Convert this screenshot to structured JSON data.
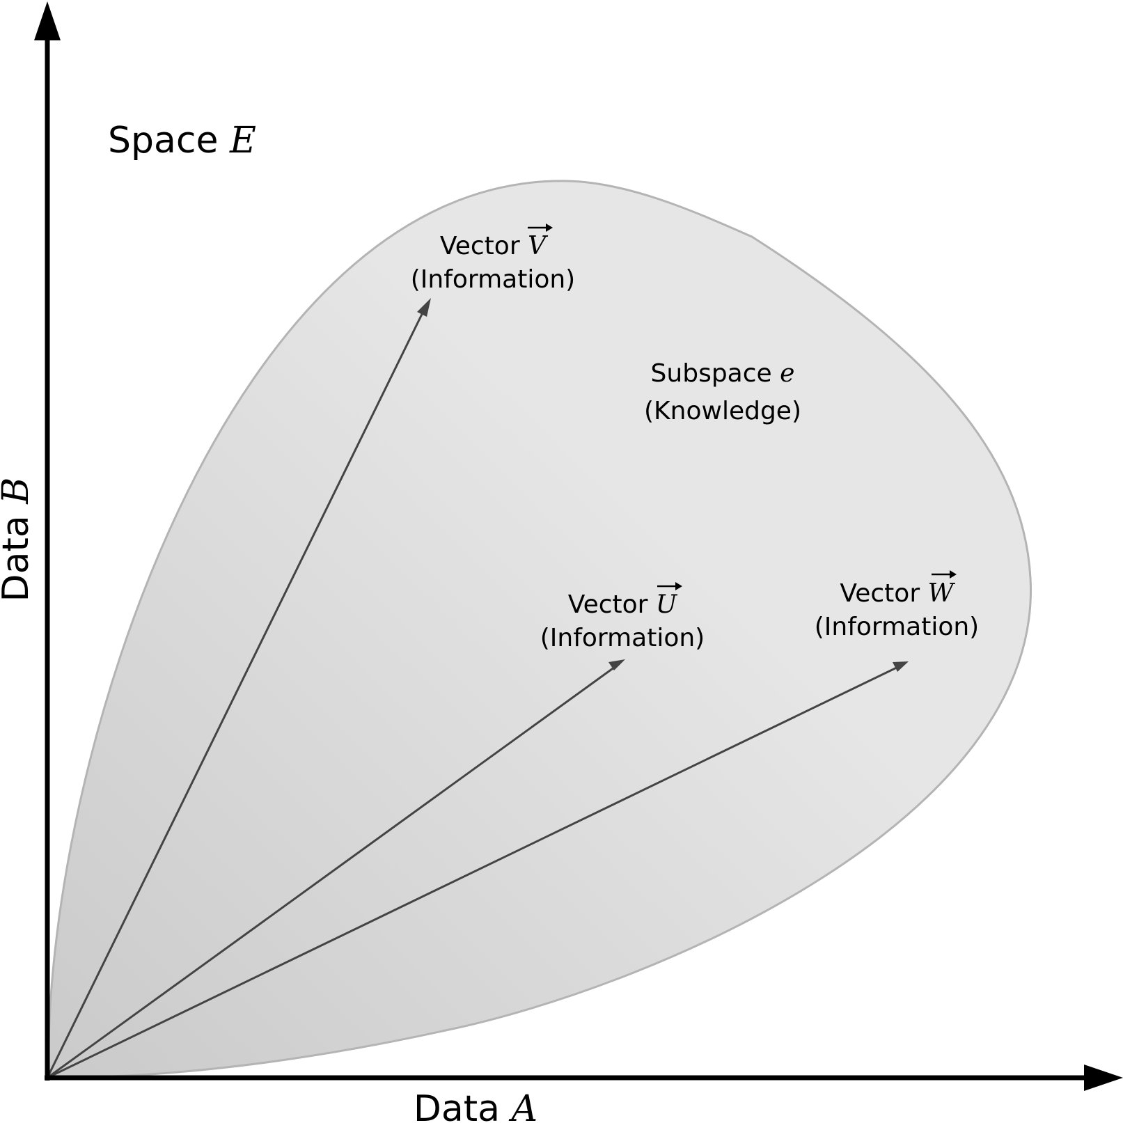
{
  "diagram": {
    "space": {
      "prefix": "Space",
      "symbol": "E"
    },
    "x_axis": {
      "prefix": "Data",
      "symbol": "A"
    },
    "y_axis": {
      "prefix": "Data",
      "symbol": "B"
    },
    "subspace": {
      "prefix": "Subspace",
      "symbol": "e",
      "caption": "(Knowledge)"
    },
    "vectors": [
      {
        "id": "v",
        "prefix": "Vector",
        "symbol": "V",
        "caption": "(Information)"
      },
      {
        "id": "u",
        "prefix": "Vector",
        "symbol": "U",
        "caption": "(Information)"
      },
      {
        "id": "w",
        "prefix": "Vector",
        "symbol": "W",
        "caption": "(Information)"
      }
    ],
    "colors": {
      "axis": "#000000",
      "vector": "#444444",
      "region_fill_light": "#e6e6e6",
      "region_fill_dark": "#cacaca",
      "region_stroke": "#b4b4b4"
    }
  }
}
